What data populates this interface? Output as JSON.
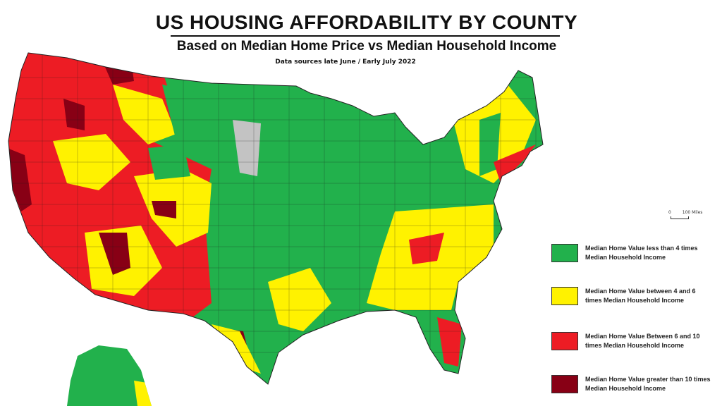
{
  "header": {
    "title": "US HOUSING AFFORDABILITY BY COUNTY",
    "subtitle": "Based on Median Home Price vs Median Household Income",
    "source": "Data sources late June / Early July 2022"
  },
  "scale": {
    "zero": "0",
    "distance": "100 Miles"
  },
  "colors": {
    "under4": "#22b14c",
    "4to6": "#fff200",
    "6to10": "#ed1c24",
    "over10": "#880015",
    "nodata": "#c3c3c3",
    "border": "#222222"
  },
  "legend": [
    {
      "label": "Median Home Value less than 4 times Median Household Income",
      "color": "#22b14c"
    },
    {
      "label": "Median Home Value between 4 and 6 times Median Household Income",
      "color": "#fff200"
    },
    {
      "label": "Median Home Value Between 6 and 10 times Median Household Income",
      "color": "#ed1c24"
    },
    {
      "label": "Median Home Value greater than 10 times Median Household Income",
      "color": "#880015"
    }
  ]
}
